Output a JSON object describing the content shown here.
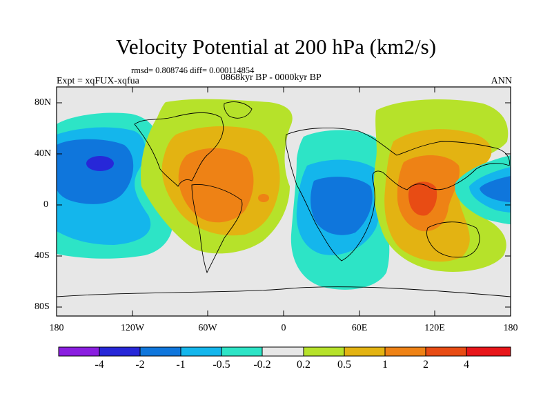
{
  "title": "Velocity Potential at 200 hPa (km2/s)",
  "stats": "rmsd= 0.808746 diff= 0.000114854",
  "period": "0868kyr BP - 0000kyr BP",
  "experiment": "Expt = xqFUX-xqfua",
  "season": "ANN",
  "lat_labels": [
    "80N",
    "40N",
    "0",
    "40S",
    "80S"
  ],
  "lon_labels": [
    "180",
    "120W",
    "60W",
    "0",
    "60E",
    "120E",
    "180"
  ],
  "colorbar": {
    "labels": [
      "-4",
      "-2",
      "-1",
      "-0.5",
      "-0.2",
      "0.2",
      "0.5",
      "1",
      "2",
      "4"
    ],
    "colors": [
      "#8a1ee0",
      "#2727d8",
      "#0f76dc",
      "#14b6ec",
      "#2de4c6",
      "#e7e7e7",
      "#b6e22a",
      "#e3b312",
      "#ee8215",
      "#e84c14",
      "#e8161a"
    ]
  },
  "colors": {
    "background": "#e7e7e7",
    "coast": "#000000"
  }
}
